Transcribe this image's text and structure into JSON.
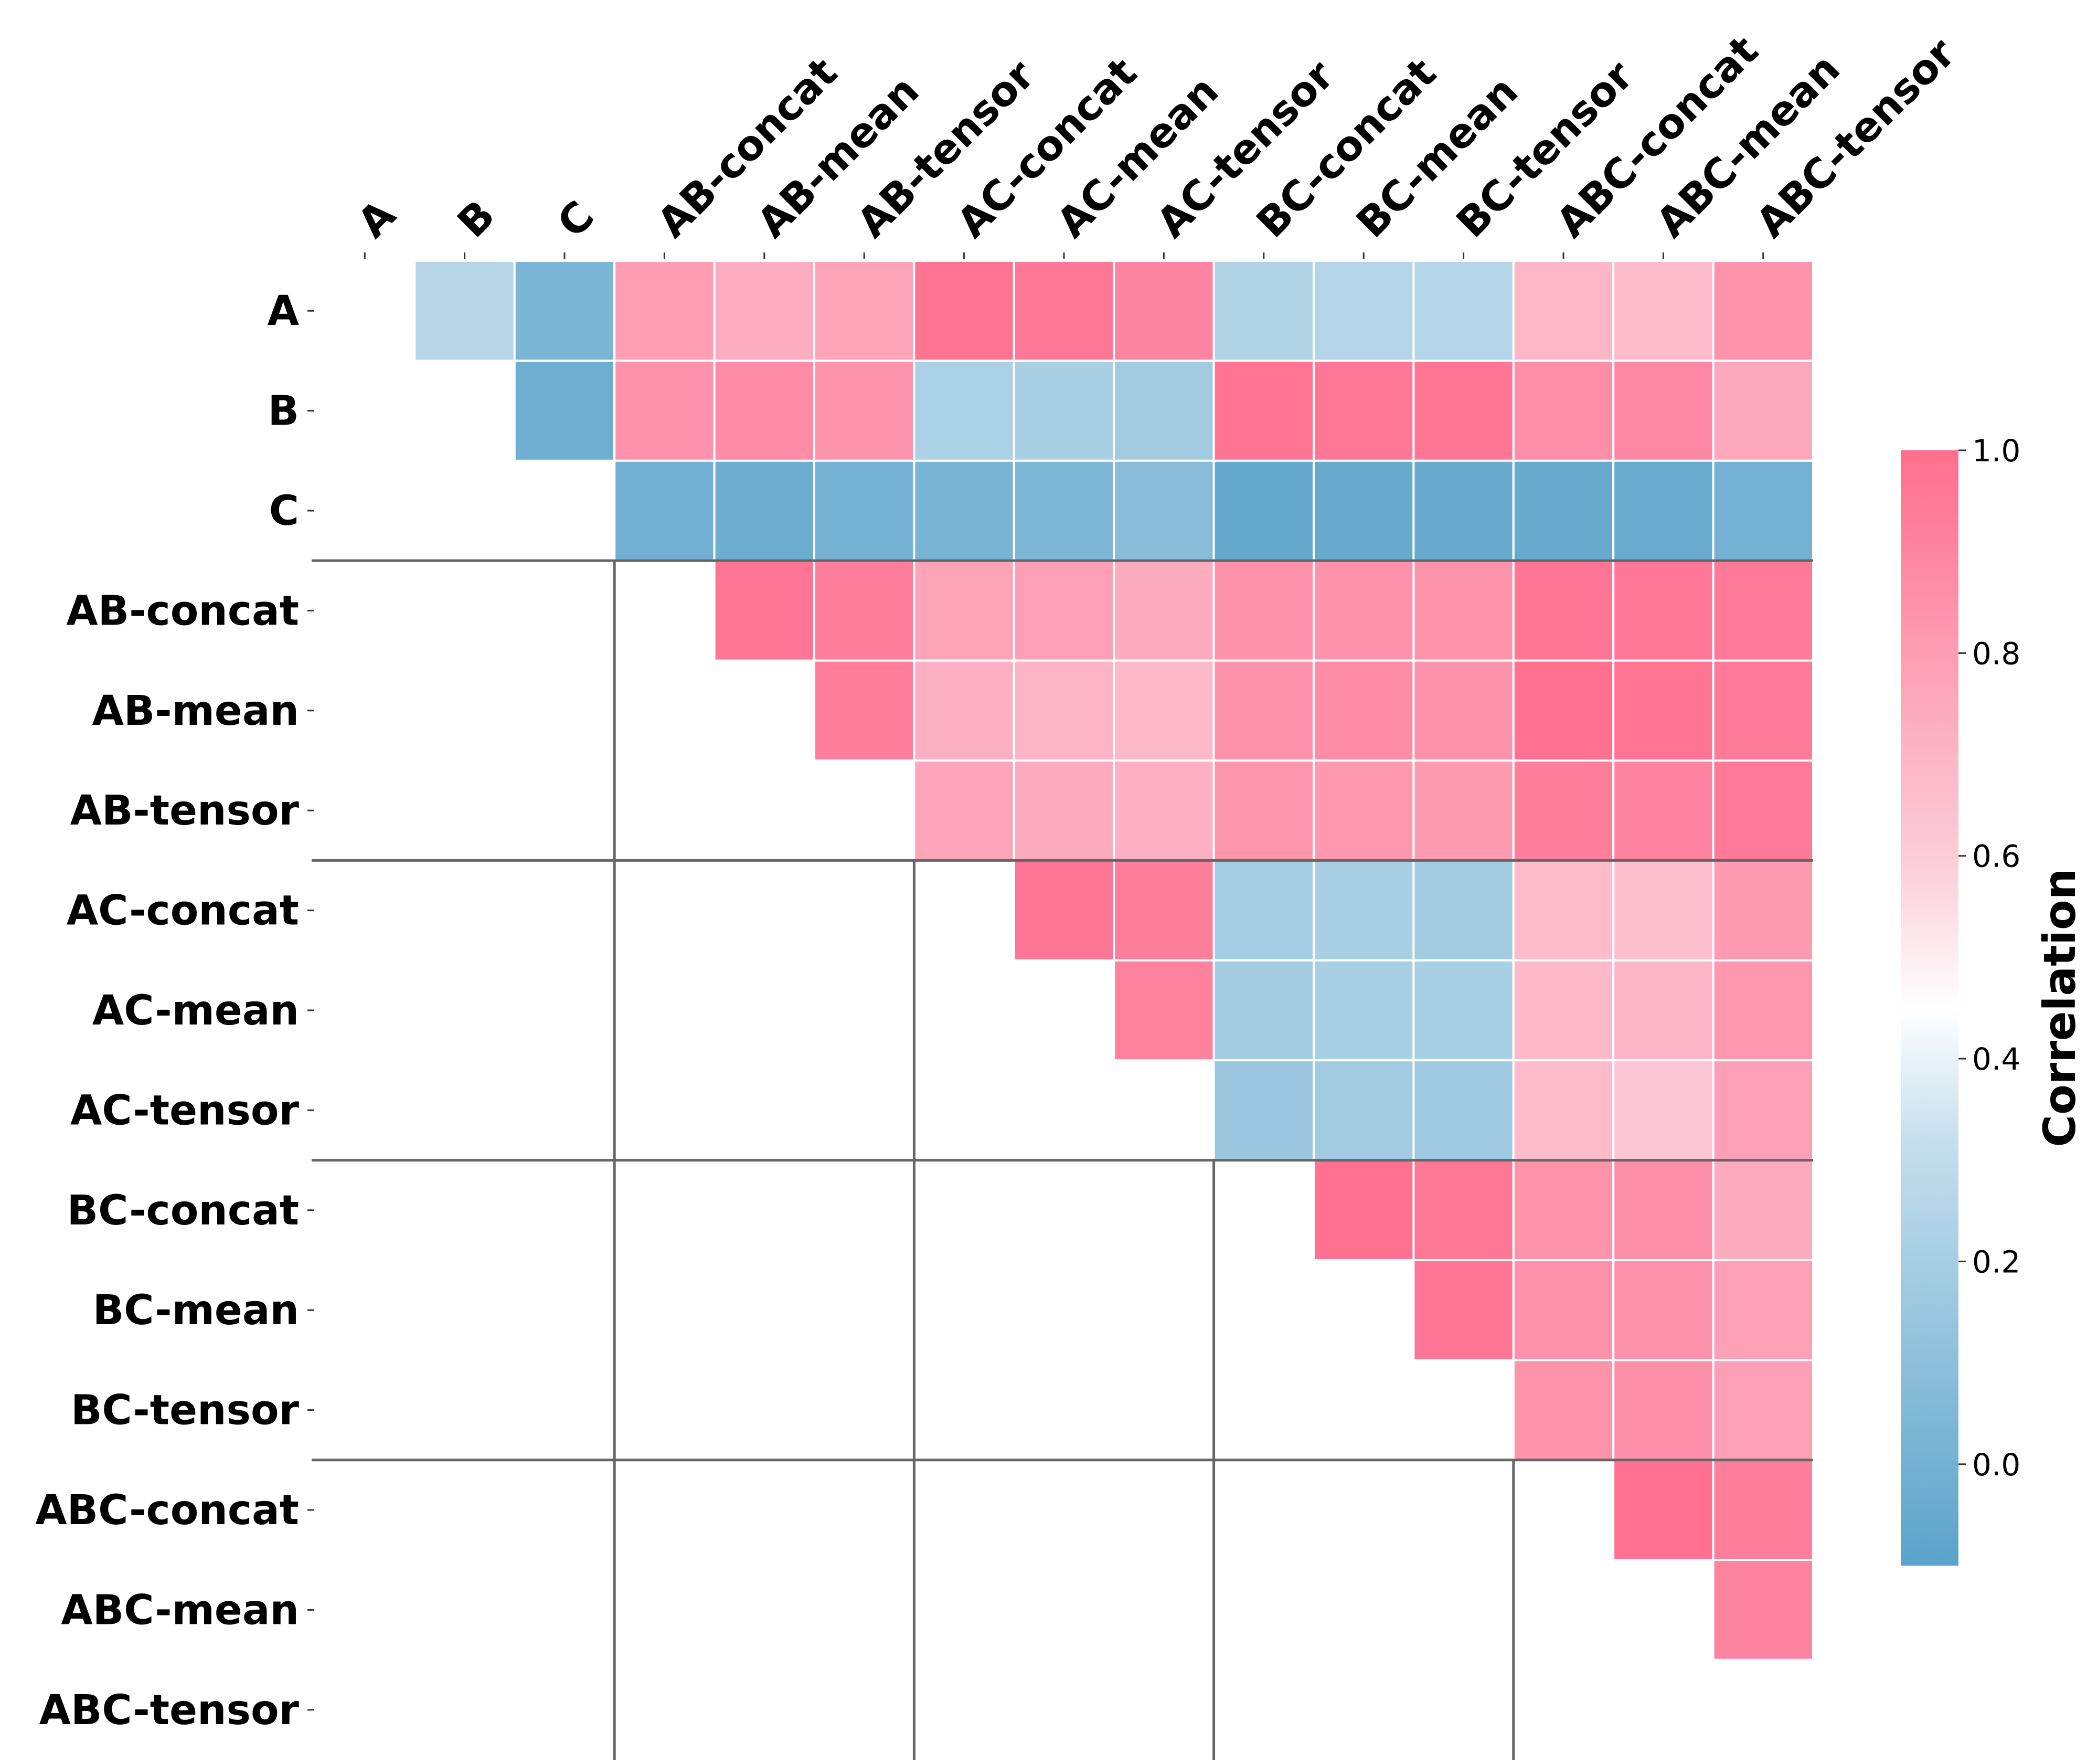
{
  "chart_data": {
    "type": "heatmap",
    "title": "",
    "labels": [
      "A",
      "B",
      "C",
      "AB-concat",
      "AB-mean",
      "AB-tensor",
      "AC-concat",
      "AC-mean",
      "AC-tensor",
      "BC-concat",
      "BC-mean",
      "BC-tensor",
      "ABC-concat",
      "ABC-mean",
      "ABC-tensor"
    ],
    "matrix_upper_triangle": [
      [
        null,
        0.26,
        0.03,
        0.8,
        0.73,
        0.77,
        0.98,
        0.96,
        0.9,
        0.24,
        0.25,
        0.25,
        0.69,
        0.67,
        0.84
      ],
      [
        null,
        null,
        -0.02,
        0.85,
        0.87,
        0.84,
        0.22,
        0.21,
        0.18,
        0.98,
        0.96,
        0.97,
        0.86,
        0.89,
        0.75
      ],
      [
        null,
        null,
        null,
        -0.01,
        -0.03,
        0.0,
        0.02,
        0.04,
        0.08,
        -0.06,
        -0.05,
        -0.05,
        -0.05,
        -0.04,
        0.0
      ],
      [
        null,
        null,
        null,
        null,
        0.97,
        0.93,
        0.77,
        0.79,
        0.74,
        0.85,
        0.85,
        0.84,
        0.97,
        0.96,
        0.95
      ],
      [
        null,
        null,
        null,
        null,
        null,
        0.93,
        0.72,
        0.7,
        0.68,
        0.85,
        0.87,
        0.85,
        0.99,
        0.98,
        0.95
      ],
      [
        null,
        null,
        null,
        null,
        null,
        null,
        0.76,
        0.74,
        0.72,
        0.83,
        0.82,
        0.81,
        0.93,
        0.91,
        0.95
      ],
      [
        null,
        null,
        null,
        null,
        null,
        null,
        null,
        0.97,
        0.93,
        0.19,
        0.21,
        0.18,
        0.67,
        0.66,
        0.81
      ],
      [
        null,
        null,
        null,
        null,
        null,
        null,
        null,
        null,
        0.92,
        0.18,
        0.21,
        0.21,
        0.68,
        0.7,
        0.82
      ],
      [
        null,
        null,
        null,
        null,
        null,
        null,
        null,
        null,
        null,
        0.15,
        0.18,
        0.17,
        0.67,
        0.63,
        0.79
      ],
      [
        null,
        null,
        null,
        null,
        null,
        null,
        null,
        null,
        null,
        null,
        0.99,
        0.96,
        0.84,
        0.86,
        0.74
      ],
      [
        null,
        null,
        null,
        null,
        null,
        null,
        null,
        null,
        null,
        null,
        null,
        0.97,
        0.85,
        0.85,
        0.79
      ],
      [
        null,
        null,
        null,
        null,
        null,
        null,
        null,
        null,
        null,
        null,
        null,
        null,
        0.84,
        0.86,
        0.79
      ],
      [
        null,
        null,
        null,
        null,
        null,
        null,
        null,
        null,
        null,
        null,
        null,
        null,
        null,
        0.99,
        0.93
      ],
      [
        null,
        null,
        null,
        null,
        null,
        null,
        null,
        null,
        null,
        null,
        null,
        null,
        null,
        null,
        0.91
      ],
      [
        null,
        null,
        null,
        null,
        null,
        null,
        null,
        null,
        null,
        null,
        null,
        null,
        null,
        null,
        null
      ]
    ],
    "group_separators_after": [
      "C",
      "AB-tensor",
      "AC-tensor",
      "BC-tensor"
    ],
    "colorbar": {
      "label": "Correlation",
      "vmin": -0.1,
      "vmax": 1.0,
      "ticks": [
        0.0,
        0.2,
        0.4,
        0.6,
        0.8,
        1.0
      ],
      "tick_labels": [
        "0.0",
        "0.2",
        "0.4",
        "0.6",
        "0.8",
        "1.0"
      ],
      "colors": {
        "low": "#5aa3ca",
        "light_blue": "#c5deed",
        "mid": "#ffffff",
        "light_pink": "#fcd0dc",
        "high": "#ff6e8f"
      }
    },
    "legend_position": "right"
  }
}
